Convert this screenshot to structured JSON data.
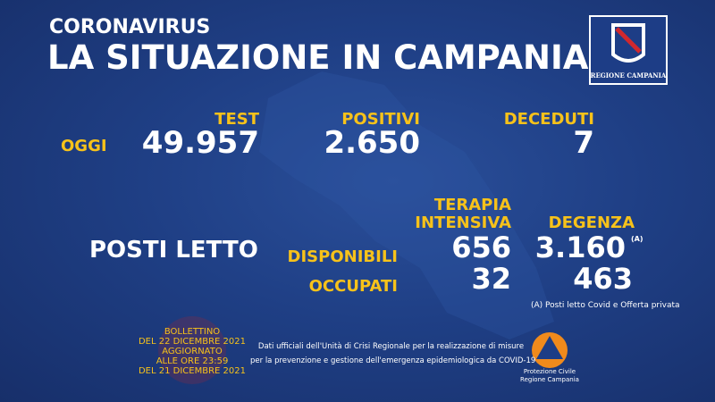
{
  "header": {
    "kicker": "CORONAVIRUS",
    "title": "LA SITUAZIONE IN CAMPANIA",
    "logo": "REGIONE CAMPANIA"
  },
  "today": {
    "label": "OGGI",
    "stats": [
      {
        "label": "TEST",
        "value": "49.957"
      },
      {
        "label": "POSITIVI",
        "value": "2.650"
      },
      {
        "label": "DECEDUTI",
        "value": "7"
      }
    ]
  },
  "beds": {
    "title": "POSTI LETTO",
    "columns": [
      [
        "TERAPIA",
        "INTENSIVA"
      ],
      [
        "DEGENZA"
      ]
    ],
    "footnote_mark": "(A)",
    "rows": [
      {
        "label": "DISPONIBILI",
        "values": [
          "656",
          "3.160"
        ]
      },
      {
        "label": "OCCUPATI",
        "values": [
          "32",
          "463"
        ]
      }
    ],
    "footnote": "(A) Posti letto Covid e Offerta privata"
  },
  "bulletin": [
    "BOLLETTINO",
    "DEL 22 DICEMBRE 2021",
    "AGGIORNATO",
    "ALLE ORE 23:59",
    "DEL 21 DICEMBRE 2021"
  ],
  "footer": [
    "Dati ufficiali dell'Unità di Crisi Regionale per la realizzazione di misure",
    "per la prevenzione e gestione dell'emergenza epidemiologica da COVID-19"
  ],
  "civil_protection": [
    "Protezione Civile",
    "Regione Campania"
  ]
}
